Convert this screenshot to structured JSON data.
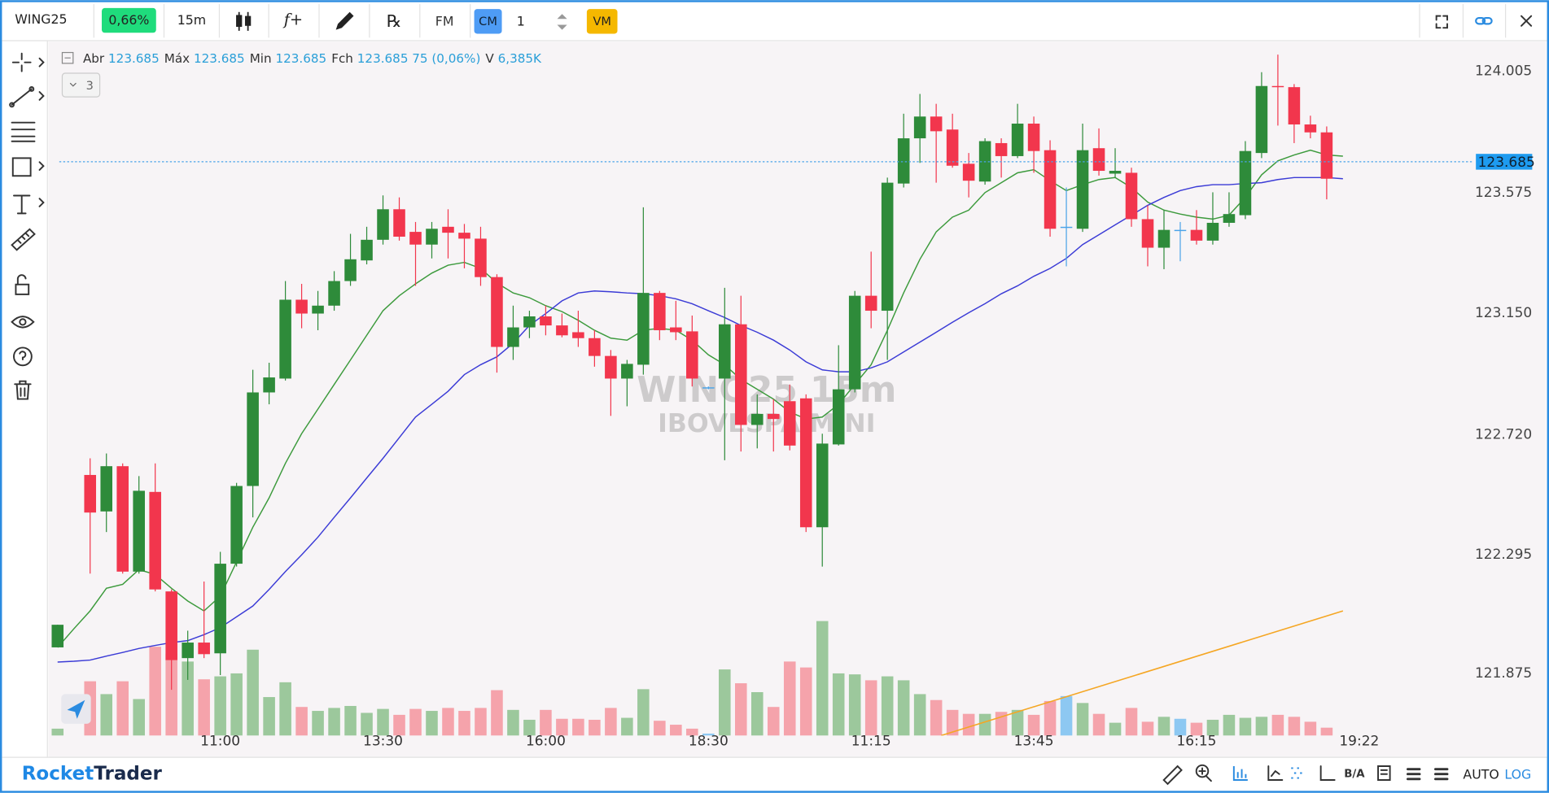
{
  "toolbar": {
    "symbol": "WING25",
    "change": "0,66%",
    "timeframe": "15m",
    "indicator": "f+",
    "rx": "℞",
    "fm": "FM",
    "cm": "CM",
    "quantity": "1",
    "vm": "VM"
  },
  "legend": {
    "items": [
      {
        "label": "Abr",
        "value": "123.685"
      },
      {
        "label": "Máx",
        "value": "123.685"
      },
      {
        "label": "Min",
        "value": "123.685"
      },
      {
        "label": "Fch",
        "value": "123.685 75 (0,06%)"
      },
      {
        "label": "V",
        "value": "6,385K"
      }
    ],
    "collapse": "3"
  },
  "watermark": {
    "line1": "WING25 15m",
    "line2": "IBOVESPA MINI"
  },
  "footer": {
    "brand": [
      "Rocket",
      "Trader"
    ],
    "ba": "B/A",
    "auto": "AUTO",
    "log": "LOG"
  },
  "chart_data": {
    "type": "candlestick",
    "categories": [
      null,
      null,
      null,
      null,
      null,
      null,
      null,
      null,
      null,
      null,
      "11:00",
      null,
      null,
      null,
      null,
      null,
      null,
      null,
      null,
      null,
      "13:30",
      null,
      null,
      null,
      null,
      null,
      null,
      null,
      null,
      null,
      "16:00",
      null,
      null,
      null,
      null,
      null,
      null,
      null,
      null,
      null,
      "18:30",
      null,
      null,
      null,
      null,
      null,
      null,
      null,
      null,
      null,
      "11:15",
      null,
      null,
      null,
      null,
      null,
      null,
      null,
      null,
      null,
      "13:45",
      null,
      null,
      null,
      null,
      null,
      null,
      null,
      null,
      null,
      "16:15",
      null,
      null,
      null,
      null,
      null,
      null,
      null,
      null,
      null,
      "19:22"
    ],
    "ohlc": [
      [
        121.967,
        122.047,
        121.967,
        122.047
      ],
      null,
      [
        122.577,
        122.636,
        122.228,
        122.444
      ],
      [
        122.448,
        122.653,
        122.375,
        122.608
      ],
      [
        122.608,
        122.618,
        122.228,
        122.235
      ],
      [
        122.235,
        122.573,
        122.228,
        122.521
      ],
      [
        122.517,
        122.618,
        122.165,
        122.172
      ],
      [
        122.165,
        122.172,
        121.817,
        121.922
      ],
      [
        121.929,
        122.026,
        121.852,
        121.984
      ],
      [
        121.984,
        122.2,
        121.929,
        121.943
      ],
      [
        121.946,
        122.305,
        121.869,
        122.263
      ],
      [
        122.263,
        122.549,
        122.253,
        122.538
      ],
      [
        122.538,
        122.949,
        122.427,
        122.869
      ],
      [
        122.869,
        122.974,
        122.827,
        122.922
      ],
      [
        122.918,
        123.263,
        122.911,
        123.197
      ],
      [
        123.197,
        123.253,
        123.096,
        123.148
      ],
      [
        123.148,
        123.228,
        123.089,
        123.176
      ],
      [
        123.176,
        123.298,
        123.158,
        123.263
      ],
      [
        123.263,
        123.43,
        123.246,
        123.34
      ],
      [
        123.336,
        123.455,
        123.322,
        123.409
      ],
      [
        123.409,
        123.566,
        123.392,
        123.517
      ],
      [
        123.517,
        123.559,
        123.406,
        123.42
      ],
      [
        123.437,
        123.472,
        123.246,
        123.392
      ],
      [
        123.392,
        123.472,
        123.343,
        123.448
      ],
      [
        123.455,
        123.517,
        123.343,
        123.434
      ],
      [
        123.434,
        123.465,
        123.308,
        123.413
      ],
      [
        123.413,
        123.455,
        123.246,
        123.277
      ],
      [
        123.277,
        123.287,
        122.939,
        123.03
      ],
      [
        123.03,
        123.176,
        122.984,
        123.099
      ],
      [
        123.099,
        123.158,
        123.061,
        123.138
      ],
      [
        123.138,
        123.176,
        123.071,
        123.106
      ],
      [
        123.106,
        123.148,
        123.064,
        123.071
      ],
      [
        123.082,
        123.158,
        123.03,
        123.061
      ],
      [
        123.061,
        123.089,
        122.96,
        122.998
      ],
      [
        122.998,
        123.019,
        122.786,
        122.918
      ],
      [
        122.918,
        122.984,
        122.82,
        122.97
      ],
      [
        122.967,
        123.524,
        122.932,
        123.221
      ],
      [
        123.221,
        123.228,
        123.054,
        123.089
      ],
      [
        123.099,
        123.193,
        123.054,
        123.082
      ],
      [
        123.085,
        123.141,
        122.89,
        122.918
      ],
      [
        122.887,
        122.89,
        122.88,
        122.887
      ],
      [
        122.918,
        123.239,
        122.629,
        123.11
      ],
      [
        123.11,
        123.211,
        122.66,
        122.754
      ],
      [
        122.754,
        122.862,
        122.671,
        122.793
      ],
      [
        122.793,
        122.845,
        122.66,
        122.775
      ],
      [
        122.838,
        122.897,
        122.664,
        122.681
      ],
      [
        122.848,
        122.862,
        122.375,
        122.392
      ],
      [
        122.392,
        122.723,
        122.253,
        122.688
      ],
      [
        122.685,
        123.036,
        122.681,
        122.88
      ],
      [
        122.88,
        123.228,
        122.869,
        123.211
      ],
      [
        123.211,
        123.367,
        123.096,
        123.158
      ],
      [
        123.158,
        123.629,
        122.984,
        123.611
      ],
      [
        123.608,
        123.855,
        123.594,
        123.768
      ],
      [
        123.768,
        123.925,
        123.681,
        123.845
      ],
      [
        123.845,
        123.89,
        123.611,
        123.793
      ],
      [
        123.799,
        123.855,
        123.664,
        123.671
      ],
      [
        123.678,
        123.716,
        123.559,
        123.618
      ],
      [
        123.615,
        123.768,
        123.604,
        123.758
      ],
      [
        123.751,
        123.768,
        123.629,
        123.705
      ],
      [
        123.705,
        123.89,
        123.698,
        123.82
      ],
      [
        123.82,
        123.845,
        123.646,
        123.723
      ],
      [
        123.726,
        123.761,
        123.42,
        123.448
      ],
      [
        123.455,
        123.594,
        123.315,
        123.455
      ],
      [
        123.448,
        123.82,
        123.437,
        123.726
      ],
      [
        123.733,
        123.803,
        123.636,
        123.653
      ],
      [
        123.643,
        123.733,
        123.629,
        123.653
      ],
      [
        123.646,
        123.664,
        123.455,
        123.482
      ],
      [
        123.482,
        123.531,
        123.315,
        123.381
      ],
      [
        123.381,
        123.514,
        123.305,
        123.444
      ],
      [
        123.444,
        123.472,
        123.333,
        123.444
      ],
      [
        123.444,
        123.514,
        123.392,
        123.406
      ],
      [
        123.406,
        123.577,
        123.392,
        123.469
      ],
      [
        123.469,
        123.577,
        123.455,
        123.5
      ],
      [
        123.496,
        123.758,
        123.482,
        123.723
      ],
      [
        123.716,
        124.002,
        123.698,
        123.953
      ],
      [
        123.953,
        124.064,
        123.813,
        123.949
      ],
      [
        123.949,
        123.96,
        123.751,
        123.817
      ],
      [
        123.817,
        123.848,
        123.768,
        123.789
      ],
      [
        123.789,
        123.81,
        123.552,
        123.625
      ],
      null,
      null
    ],
    "volume": [
      7,
      null,
      55,
      42,
      55,
      37,
      90,
      83,
      75,
      57,
      60,
      63,
      87,
      39,
      54,
      29,
      25,
      28,
      30,
      23,
      27,
      21,
      27,
      25,
      28,
      25,
      28,
      46,
      26,
      16,
      26,
      17,
      17,
      16,
      28,
      18,
      47,
      15,
      11,
      7,
      2,
      67,
      53,
      44,
      29,
      75,
      69,
      116,
      63,
      62,
      56,
      60,
      56,
      42,
      36,
      26,
      22,
      22,
      24,
      26,
      21,
      35,
      40,
      33,
      22,
      13,
      28,
      14,
      19,
      17,
      13,
      16,
      21,
      18,
      19,
      21,
      19,
      14,
      8,
      null,
      null
    ],
    "colors": {
      "up": "#2e8b3a",
      "down": "#f2364d",
      "flat": "#4aa3e8",
      "volume_up": "#9cc89c",
      "volume_down": "#f5a3ab",
      "volume_flat": "#8dc8f2"
    },
    "overlays": [
      {
        "color": "#3c9a3c",
        "values": [
          121.967,
          122.033,
          122.096,
          122.176,
          122.19,
          122.242,
          122.225,
          122.176,
          122.131,
          122.096,
          122.148,
          122.27,
          122.392,
          122.496,
          122.618,
          122.723,
          122.81,
          122.897,
          122.984,
          123.071,
          123.158,
          123.211,
          123.253,
          123.291,
          123.319,
          123.329,
          123.308,
          123.256,
          123.221,
          123.204,
          123.176,
          123.155,
          123.124,
          123.089,
          123.061,
          123.054,
          123.089,
          123.096,
          123.089,
          123.054,
          123.002,
          122.967,
          122.915,
          122.88,
          122.845,
          122.8,
          122.775,
          122.782,
          122.827,
          122.897,
          122.967,
          123.089,
          123.221,
          123.34,
          123.437,
          123.489,
          123.514,
          123.576,
          123.611,
          123.646,
          123.657,
          123.618,
          123.583,
          123.604,
          123.622,
          123.629,
          123.594,
          123.542,
          123.514,
          123.5,
          123.489,
          123.482,
          123.496,
          123.559,
          123.639,
          123.688,
          123.709,
          123.726,
          123.709,
          123.705,
          null
        ]
      },
      {
        "color": "#3b3bd6",
        "values": [
          121.915,
          121.918,
          121.922,
          121.936,
          121.949,
          121.963,
          121.974,
          121.984,
          121.991,
          122.012,
          122.037,
          122.075,
          122.113,
          122.172,
          122.235,
          122.294,
          122.357,
          122.427,
          122.496,
          122.566,
          122.636,
          122.709,
          122.782,
          122.827,
          122.873,
          122.932,
          122.967,
          122.995,
          123.043,
          123.106,
          123.148,
          123.193,
          123.221,
          123.228,
          123.225,
          123.221,
          123.218,
          123.211,
          123.2,
          123.183,
          123.158,
          123.134,
          123.106,
          123.082,
          123.054,
          123.019,
          122.977,
          122.949,
          122.942,
          122.942,
          122.956,
          122.977,
          123.012,
          123.047,
          123.082,
          123.117,
          123.151,
          123.183,
          123.218,
          123.246,
          123.28,
          123.308,
          123.343,
          123.392,
          123.427,
          123.462,
          123.496,
          123.531,
          123.559,
          123.583,
          123.597,
          123.604,
          123.604,
          123.608,
          123.611,
          123.622,
          123.629,
          123.629,
          123.629,
          123.625,
          null
        ]
      }
    ],
    "trendline": {
      "color": "#f5a623",
      "x": [
        54.3,
        79
      ],
      "y": [
        121.655,
        122.096
      ]
    },
    "last_price": 123.685,
    "ylim": [
      121.655,
      124.11
    ],
    "yticks": [
      124.005,
      123.575,
      {
        "value": 123.15,
        "label": "123.150"
      },
      {
        "value": 122.72,
        "label": "122.720"
      },
      122.295,
      121.875
    ],
    "grid": false
  }
}
